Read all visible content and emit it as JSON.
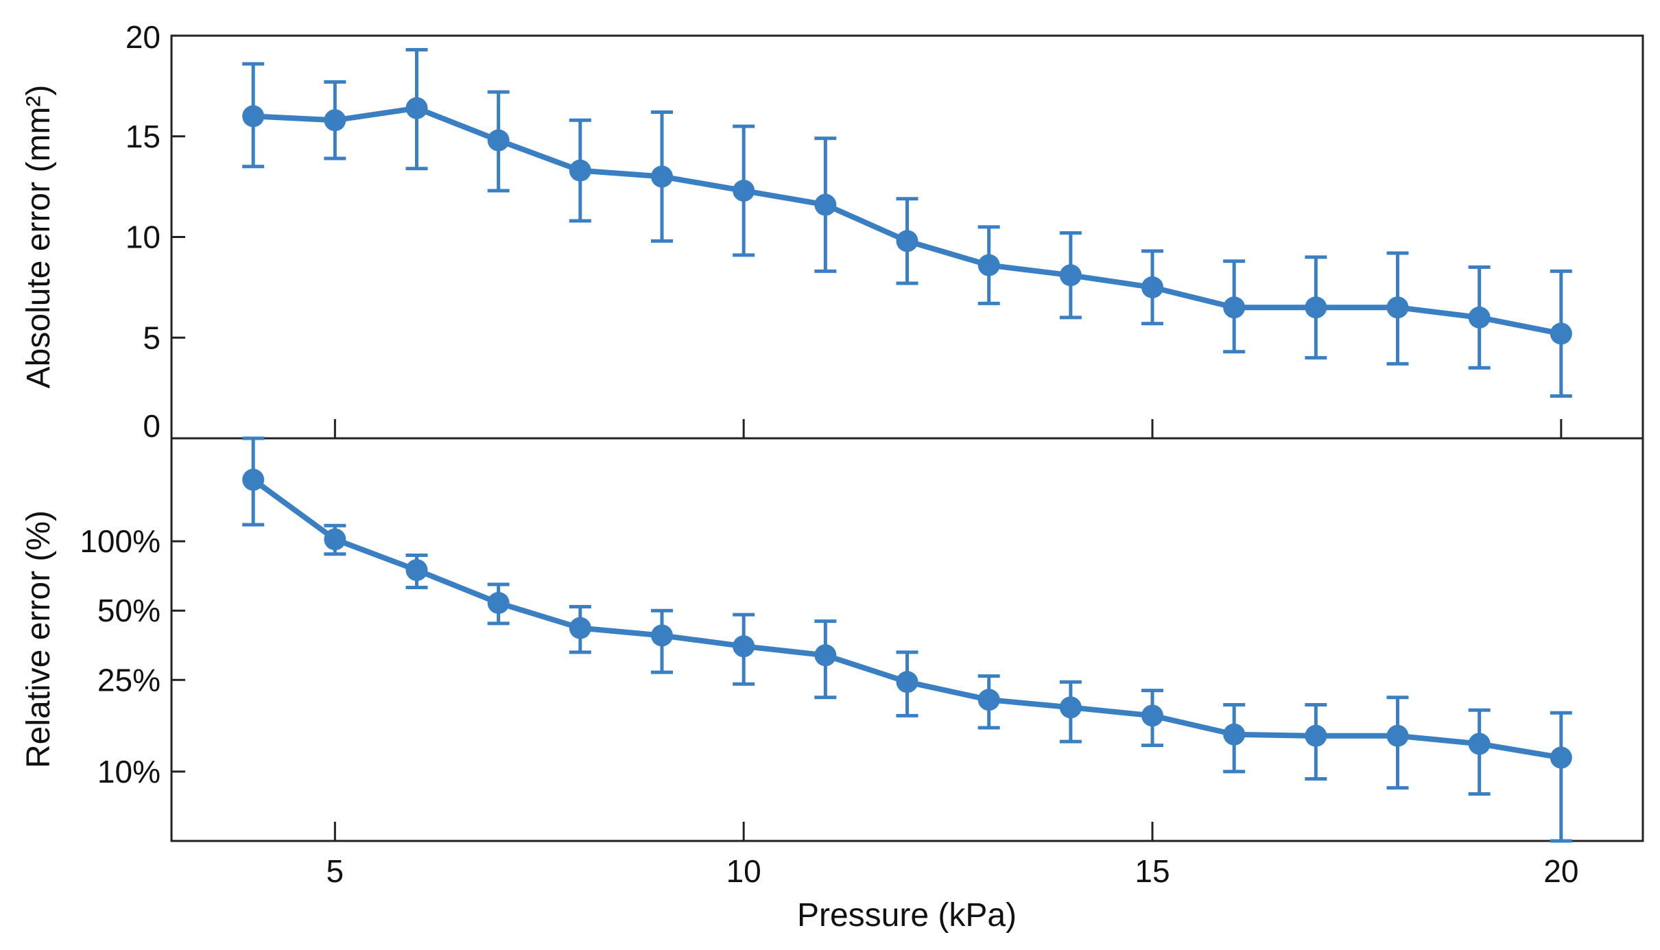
{
  "chart_data": [
    {
      "type": "line",
      "panel": "top",
      "ylabel": "Absolute error (mm²)",
      "xlabel": "",
      "xlim": [
        3,
        21
      ],
      "ylim": [
        0,
        20
      ],
      "yscale": "linear",
      "yticks": [
        0,
        5,
        10,
        15,
        20
      ],
      "ytick_labels": [
        "0",
        "5",
        "10",
        "15",
        "20"
      ],
      "xticks": [
        5,
        10,
        15,
        20
      ],
      "color": "#3a7fc1",
      "series": [
        {
          "name": "Absolute error",
          "x": [
            4,
            5,
            6,
            7,
            8,
            9,
            10,
            11,
            12,
            13,
            14,
            15,
            16,
            17,
            18,
            19,
            20
          ],
          "y": [
            16.0,
            15.8,
            16.4,
            14.8,
            13.3,
            13.0,
            12.3,
            11.6,
            9.8,
            8.6,
            8.1,
            7.5,
            6.5,
            6.5,
            6.5,
            6.0,
            5.2
          ],
          "err_low": [
            13.5,
            13.9,
            13.4,
            12.3,
            10.8,
            9.8,
            9.1,
            8.3,
            7.7,
            6.7,
            6.0,
            5.7,
            4.3,
            4.0,
            3.7,
            3.5,
            2.1
          ],
          "err_high": [
            18.6,
            17.7,
            19.3,
            17.2,
            15.8,
            16.2,
            15.5,
            14.9,
            11.9,
            10.5,
            10.2,
            9.3,
            8.8,
            9.0,
            9.2,
            8.5,
            8.3
          ]
        }
      ]
    },
    {
      "type": "line",
      "panel": "bottom",
      "ylabel": "Relative error (%)",
      "xlabel": "Pressure (kPa)",
      "xlim": [
        3,
        21
      ],
      "ylim": [
        5,
        280
      ],
      "yscale": "log",
      "yticks": [
        10,
        25,
        50,
        100
      ],
      "ytick_labels": [
        "10%",
        "25%",
        "50%",
        "100%"
      ],
      "xticks": [
        5,
        10,
        15,
        20
      ],
      "xtick_labels": [
        "5",
        "10",
        "15",
        "20"
      ],
      "color": "#3a7fc1",
      "series": [
        {
          "name": "Relative error",
          "x": [
            4,
            5,
            6,
            7,
            8,
            9,
            10,
            11,
            12,
            13,
            14,
            15,
            16,
            17,
            18,
            19,
            20
          ],
          "y": [
            185,
            102,
            75,
            54,
            42,
            39,
            35,
            32,
            24.5,
            20.5,
            19,
            17.5,
            14.5,
            14.3,
            14.3,
            13.2,
            11.5
          ],
          "err_low": [
            118,
            88,
            63,
            44,
            33,
            27,
            24,
            21,
            17.5,
            15.5,
            13.5,
            13,
            10,
            9.3,
            8.5,
            8,
            4.6
          ],
          "err_high": [
            280,
            117,
            87,
            65,
            52,
            50,
            48,
            45,
            33,
            26,
            24.5,
            22.5,
            19.5,
            19.5,
            21,
            18.5,
            18
          ]
        }
      ]
    }
  ]
}
